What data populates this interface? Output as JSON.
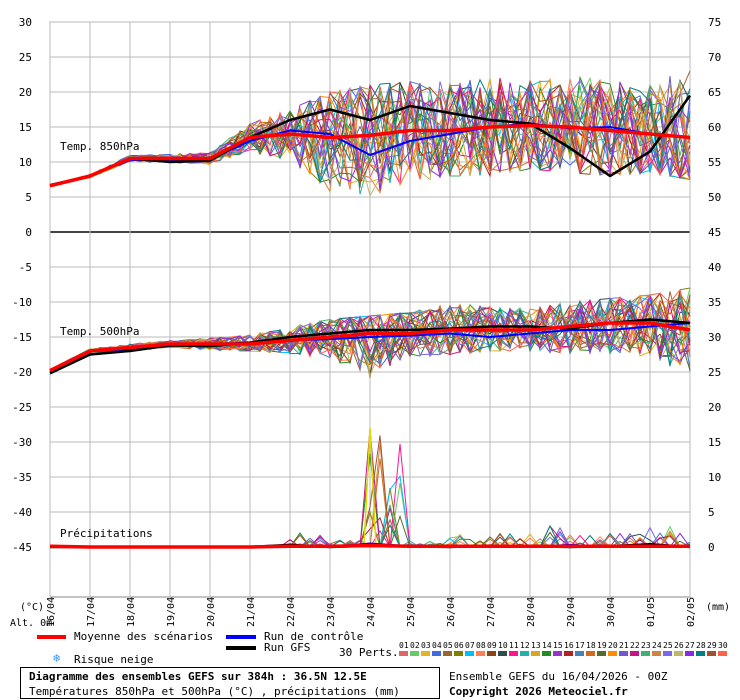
{
  "chart_data": {
    "type": "line",
    "dates": [
      "16/04",
      "17/04",
      "18/04",
      "19/04",
      "20/04",
      "21/04",
      "22/04",
      "23/04",
      "24/04",
      "25/04",
      "26/04",
      "27/04",
      "28/04",
      "29/04",
      "30/04",
      "01/05",
      "02/05"
    ],
    "left_axis_label": "(°C)",
    "left_altitude_label": "Alt. 0m",
    "right_axis_label": "(mm)",
    "left_ticks": [
      "30",
      "25",
      "20",
      "15",
      "10",
      "5",
      "0",
      "-5",
      "-10",
      "-15",
      "-20",
      "-25",
      "-30",
      "-35",
      "-40",
      "-45"
    ],
    "right_ticks_850": [
      "75",
      "70",
      "65",
      "60",
      "55",
      "50",
      "45"
    ],
    "right_ticks_lower": [
      "40",
      "35",
      "30",
      "25",
      "20",
      "15",
      "10",
      "5",
      "0"
    ],
    "panels": [
      {
        "label": "Temp. 850hPa",
        "unit": "°C",
        "ylim": [
          5,
          30
        ],
        "mean": [
          6.6,
          8.0,
          10.5,
          10.5,
          10.5,
          13.5,
          14.0,
          13.5,
          13.8,
          14.5,
          14.5,
          15.0,
          15.2,
          15.0,
          14.5,
          14.0,
          13.5
        ],
        "control": [
          6.7,
          8.0,
          10.3,
          10.2,
          10.4,
          13.0,
          14.5,
          14.0,
          11.0,
          13.0,
          14.0,
          15.0,
          15.5,
          14.8,
          15.0,
          14.0,
          13.5
        ],
        "gfs": [
          6.7,
          8.0,
          10.5,
          10.0,
          10.2,
          13.5,
          16.0,
          17.5,
          16.0,
          18.0,
          17.0,
          16.0,
          15.5,
          12.0,
          8.0,
          11.5,
          19.5
        ],
        "spread_min": [
          6.0,
          7.3,
          9.5,
          9.3,
          9.5,
          11.5,
          10.0,
          5.0,
          4.0,
          7.0,
          8.0,
          8.0,
          9.0,
          8.5,
          8.0,
          8.5,
          7.5
        ],
        "spread_max": [
          7.3,
          8.8,
          11.3,
          11.2,
          11.5,
          15.5,
          17.5,
          20.0,
          21.0,
          21.5,
          21.5,
          22.0,
          22.0,
          22.5,
          22.0,
          22.5,
          26.5
        ]
      },
      {
        "label": "Temp. 500hPa",
        "unit": "°C",
        "ylim": [
          -25,
          -5
        ],
        "mean": [
          -19.8,
          -17.0,
          -16.5,
          -16.0,
          -16.0,
          -16.0,
          -15.5,
          -15.0,
          -14.5,
          -14.5,
          -14.0,
          -14.0,
          -14.0,
          -13.5,
          -13.0,
          -13.0,
          -14.0
        ],
        "control": [
          -20.0,
          -17.0,
          -16.8,
          -16.0,
          -16.0,
          -15.8,
          -15.5,
          -15.3,
          -15.0,
          -14.8,
          -14.5,
          -15.0,
          -14.5,
          -14.0,
          -14.0,
          -13.5,
          -13.0
        ],
        "gfs": [
          -20.2,
          -17.5,
          -17.0,
          -16.2,
          -16.3,
          -15.8,
          -15.0,
          -14.5,
          -14.0,
          -14.0,
          -13.8,
          -13.5,
          -13.5,
          -13.8,
          -13.0,
          -12.5,
          -13.0
        ],
        "spread_min": [
          -21.0,
          -18.0,
          -17.5,
          -17.0,
          -17.0,
          -17.0,
          -17.5,
          -18.5,
          -24.5,
          -18.0,
          -17.5,
          -17.0,
          -17.0,
          -17.5,
          -18.0,
          -18.5,
          -20.5
        ],
        "spread_max": [
          -18.5,
          -16.0,
          -15.5,
          -15.5,
          -15.0,
          -14.5,
          -13.5,
          -12.5,
          -12.0,
          -11.5,
          -10.0,
          -10.5,
          -11.0,
          -10.0,
          -9.5,
          -9.0,
          -8.0
        ]
      },
      {
        "label": "Précipitations",
        "unit": "mm",
        "ylim": [
          0,
          5
        ],
        "mean": [
          0.1,
          0,
          0,
          0,
          0,
          0,
          0.1,
          0.1,
          0.2,
          0.1,
          0.1,
          0.1,
          0.1,
          0.1,
          0.1,
          0.1,
          0.1
        ],
        "control": [
          0.1,
          0,
          0,
          0,
          0,
          0,
          0.2,
          0,
          0.5,
          0.1,
          0,
          0.2,
          0,
          0.3,
          0,
          0.2,
          0.1
        ],
        "gfs": [
          0,
          0,
          0,
          0,
          0,
          0,
          0.3,
          0,
          0.2,
          0.1,
          0,
          0.2,
          0.1,
          0,
          0.1,
          0.4,
          0
        ],
        "spread_max": [
          0.2,
          0,
          0,
          0,
          0,
          0,
          2,
          1,
          17,
          1,
          2,
          2,
          4,
          2,
          2,
          3,
          2
        ]
      }
    ],
    "legend": [
      {
        "name": "Moyenne des scénarios",
        "color": "#ff0000"
      },
      {
        "name": "Run de contrôle",
        "color": "#0000ff"
      },
      {
        "name": "Run GFS",
        "color": "#000000"
      },
      {
        "name": "Risque neige",
        "color": "#3399ff"
      }
    ],
    "perturbations_label": "30 Perts.",
    "perturbations": [
      "01",
      "02",
      "03",
      "04",
      "05",
      "06",
      "07",
      "08",
      "09",
      "10",
      "11",
      "12",
      "13",
      "14",
      "15",
      "16",
      "17",
      "18",
      "19",
      "20",
      "21",
      "22",
      "23",
      "24",
      "25",
      "26",
      "27",
      "28",
      "29",
      "30"
    ],
    "perturbation_colors": [
      "#e06666",
      "#66cc66",
      "#e6b422",
      "#4169e1",
      "#996633",
      "#808000",
      "#00bfff",
      "#ff7f50",
      "#8b4513",
      "#2f4f4f",
      "#ff1493",
      "#20b2aa",
      "#daa520",
      "#228b22",
      "#9932cc",
      "#b22222",
      "#4682b4",
      "#d2691e",
      "#556b2f",
      "#ff8c00",
      "#6a5acd",
      "#c71585",
      "#3cb371",
      "#cd853f",
      "#7b68ee",
      "#bdb76b",
      "#8a2be2",
      "#008080",
      "#a0522d",
      "#ff6347"
    ]
  },
  "footer": {
    "title": "Diagramme des ensembles GEFS sur 384h : 36.5N 12.5E",
    "subtitle": "Températures 850hPa et 500hPa (°C) , précipitations (mm)",
    "run_info": "Ensemble GEFS du 16/04/2026 - 00Z",
    "copyright": "Copyright 2026 Meteociel.fr"
  }
}
